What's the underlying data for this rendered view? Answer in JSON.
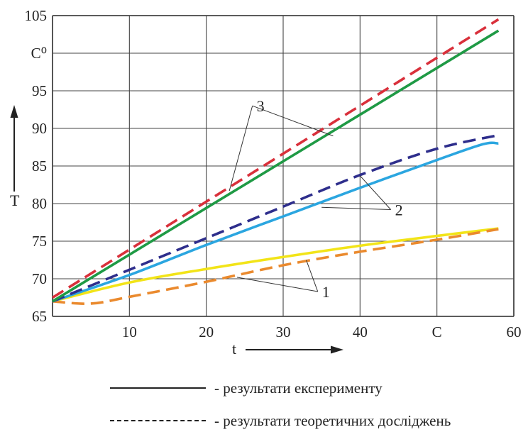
{
  "chart_data": {
    "type": "line",
    "xlabel": "t",
    "ylabel": "T",
    "y_unit": "C⁰",
    "x_unit": "C",
    "xlim": [
      0,
      60
    ],
    "ylim": [
      65,
      105
    ],
    "x_ticks": [
      "10",
      "20",
      "30",
      "40",
      "C",
      "60"
    ],
    "y_ticks": [
      "65",
      "70",
      "75",
      "80",
      "85",
      "90",
      "95",
      "C⁰",
      "105"
    ],
    "grid": true,
    "series": [
      {
        "group": "1",
        "style": "solid",
        "color": "#f2e418",
        "x": [
          0,
          10,
          20,
          30,
          40,
          50,
          58
        ],
        "y": [
          67,
          69.5,
          71.3,
          72.9,
          74.4,
          75.7,
          76.7
        ]
      },
      {
        "group": "1",
        "style": "dashed",
        "color": "#ea8a2e",
        "x": [
          0,
          5,
          10,
          20,
          30,
          40,
          50,
          58
        ],
        "y": [
          67,
          66.7,
          67.6,
          69.6,
          71.8,
          73.6,
          75.2,
          76.6
        ]
      },
      {
        "group": "2",
        "style": "solid",
        "color": "#2ba6e0",
        "x": [
          0,
          10,
          20,
          30,
          40,
          50,
          56,
          58
        ],
        "y": [
          67,
          70.5,
          74.5,
          78.3,
          82.1,
          85.8,
          87.9,
          88
        ]
      },
      {
        "group": "2",
        "style": "dashed",
        "color": "#2e2e8c",
        "x": [
          0,
          10,
          20,
          30,
          40,
          50,
          58
        ],
        "y": [
          67,
          71.2,
          75.4,
          79.6,
          83.8,
          87.3,
          89.1
        ]
      },
      {
        "group": "3",
        "style": "solid",
        "color": "#1f9a45",
        "x": [
          0,
          58
        ],
        "y": [
          67,
          103
        ]
      },
      {
        "group": "3",
        "style": "dashed",
        "color": "#d9303b",
        "x": [
          0,
          58
        ],
        "y": [
          67.5,
          104.5
        ]
      }
    ],
    "annotations": [
      {
        "text": "1",
        "anchor": [
          34.5,
          68.3
        ],
        "targets": [
          [
            33,
            72.5
          ],
          [
            24,
            70.2
          ]
        ]
      },
      {
        "text": "2",
        "anchor": [
          44,
          79.2
        ],
        "targets": [
          [
            40,
            83.7
          ],
          [
            35,
            79.5
          ]
        ]
      },
      {
        "text": "3",
        "anchor": [
          26,
          93
        ],
        "targets": [
          [
            36.5,
            89
          ],
          [
            23,
            81.7
          ]
        ]
      }
    ]
  },
  "legend": {
    "experiment": "- результати експерименту",
    "theory": "- результати теоретичних досліджень"
  }
}
